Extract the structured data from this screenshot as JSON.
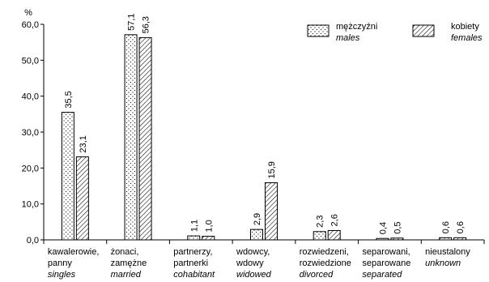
{
  "chart_data": {
    "type": "bar",
    "unit": "%",
    "ylim": [
      0,
      60
    ],
    "yticks": [
      "0,0",
      "10,0",
      "20,0",
      "30,0",
      "40,0",
      "50,0",
      "60,0"
    ],
    "grid": false,
    "legend_position": "top-right",
    "categories": [
      [
        "kawalerowie,",
        "panny",
        "singles"
      ],
      [
        "żonaci,",
        "zamężne",
        "married"
      ],
      [
        "partnerzy,",
        "partnerki",
        "cohabitant"
      ],
      [
        "wdowcy,",
        "wdowy",
        "widowed"
      ],
      [
        "rozwiedzeni,",
        "rozwiedzione",
        "divorced"
      ],
      [
        "separowani,",
        "separowane",
        "separated"
      ],
      [
        "nieustalony",
        "unknown"
      ]
    ],
    "series": [
      {
        "name": [
          "mężczyźni",
          "males"
        ],
        "values": [
          35.5,
          57.1,
          1.1,
          2.9,
          2.3,
          0.4,
          0.6
        ],
        "labels": [
          "35,5",
          "57,1",
          "1,1",
          "2,9",
          "2,3",
          "0,4",
          "0,6"
        ],
        "pattern": "dots"
      },
      {
        "name": [
          "kobiety",
          "females"
        ],
        "values": [
          23.1,
          56.3,
          1.0,
          15.9,
          2.6,
          0.5,
          0.6
        ],
        "labels": [
          "23,1",
          "56,3",
          "1,0",
          "15,9",
          "2,6",
          "0,5",
          "0,6"
        ],
        "pattern": "hatch"
      }
    ]
  }
}
